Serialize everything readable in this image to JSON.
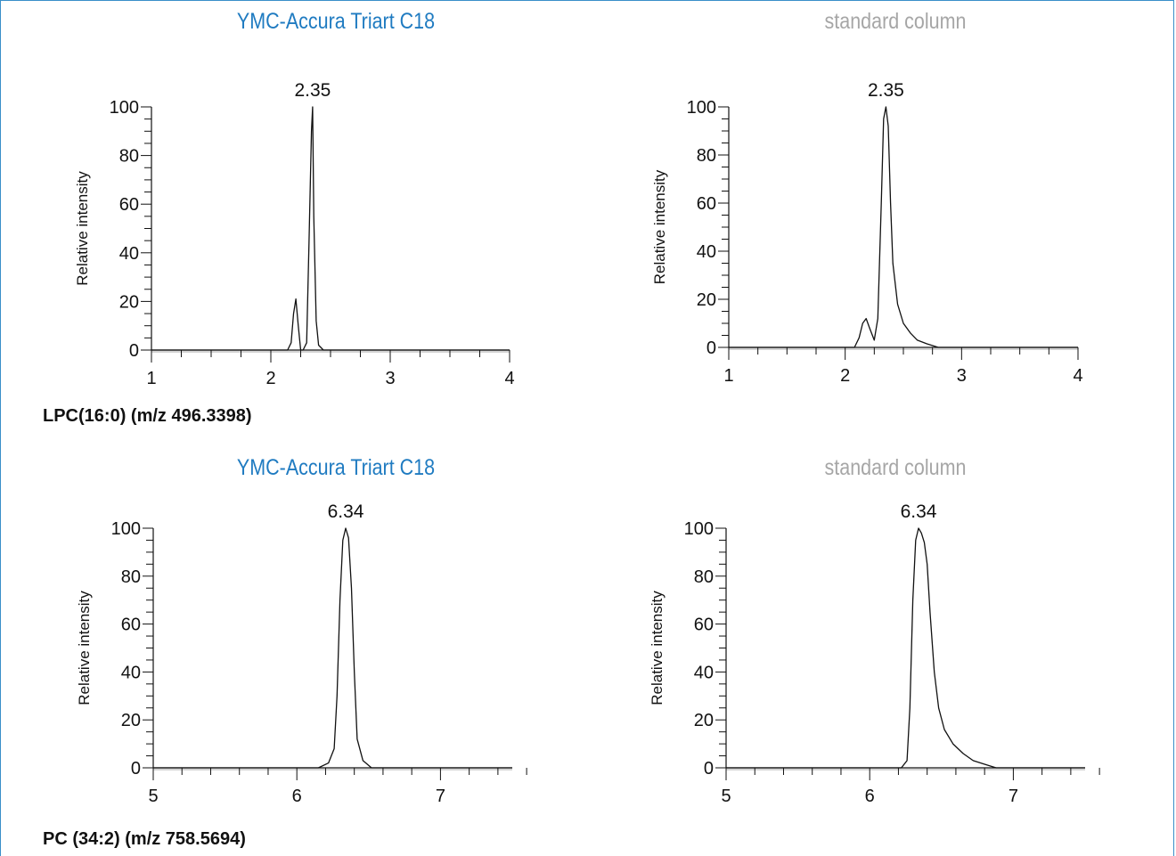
{
  "colors": {
    "accent": "#1f7bc1",
    "muted": "#a6a6a6",
    "frame": "#3a8fc9"
  },
  "sections": [
    {
      "compound": "LPC(16:0) (m/z 496.3398)"
    },
    {
      "compound": "PC (34:2) (m/z 758.5694)"
    }
  ],
  "chart_data": [
    {
      "type": "line",
      "title": "YMC-Accura Triart C18",
      "title_color": "accent",
      "ylabel": "Relative intensity",
      "xlabel": "",
      "xlim": [
        1,
        4
      ],
      "ylim": [
        0,
        100
      ],
      "xticks": [
        "1",
        "2",
        "3",
        "4"
      ],
      "yticks": [
        "0",
        "20",
        "40",
        "60",
        "80",
        "100"
      ],
      "peak_label": "2.35",
      "series": [
        {
          "x": [
            1.0,
            2.14,
            2.17,
            2.19,
            2.21,
            2.23,
            2.25,
            2.27,
            2.3,
            2.32,
            2.34,
            2.35,
            2.36,
            2.38,
            2.4,
            2.44,
            4.0
          ],
          "y": [
            0,
            0,
            3,
            15,
            21,
            10,
            0,
            0,
            3,
            45,
            90,
            100,
            55,
            12,
            2,
            0,
            0
          ]
        }
      ]
    },
    {
      "type": "line",
      "title": "standard column",
      "title_color": "muted",
      "ylabel": "Relative intensity",
      "xlabel": "",
      "xlim": [
        1,
        4
      ],
      "ylim": [
        0,
        100
      ],
      "xticks": [
        "1",
        "2",
        "3",
        "4"
      ],
      "yticks": [
        "0",
        "20",
        "40",
        "60",
        "80",
        "100"
      ],
      "peak_label": "2.35",
      "series": [
        {
          "x": [
            1.0,
            2.08,
            2.12,
            2.15,
            2.18,
            2.21,
            2.25,
            2.28,
            2.31,
            2.33,
            2.35,
            2.37,
            2.39,
            2.41,
            2.45,
            2.5,
            2.56,
            2.62,
            2.7,
            2.8,
            4.0
          ],
          "y": [
            0,
            0,
            4,
            10,
            12,
            8,
            3,
            12,
            60,
            95,
            100,
            92,
            60,
            35,
            18,
            10,
            6,
            3,
            1.5,
            0,
            0
          ]
        }
      ]
    },
    {
      "type": "line",
      "title": "YMC-Accura Triart C18",
      "title_color": "accent",
      "ylabel": "Relative intensity",
      "xlabel": "",
      "xlim": [
        5,
        7.5
      ],
      "ylim": [
        0,
        100
      ],
      "xticks": [
        "5",
        "6",
        "7"
      ],
      "yticks": [
        "0",
        "20",
        "40",
        "60",
        "80",
        "100"
      ],
      "peak_label": "6.34",
      "series": [
        {
          "x": [
            5.0,
            6.15,
            6.22,
            6.26,
            6.28,
            6.3,
            6.32,
            6.34,
            6.36,
            6.38,
            6.4,
            6.42,
            6.46,
            6.52,
            7.5
          ],
          "y": [
            0,
            0,
            2,
            8,
            30,
            70,
            95,
            100,
            96,
            75,
            40,
            12,
            3,
            0,
            0
          ]
        }
      ]
    },
    {
      "type": "line",
      "title": "standard column",
      "title_color": "muted",
      "ylabel": "Relative intensity",
      "xlabel": "",
      "xlim": [
        5,
        7.5
      ],
      "ylim": [
        0,
        100
      ],
      "xticks": [
        "5",
        "6",
        "7"
      ],
      "yticks": [
        "0",
        "20",
        "40",
        "60",
        "80",
        "100"
      ],
      "peak_label": "6.34",
      "series": [
        {
          "x": [
            5.0,
            6.22,
            6.26,
            6.28,
            6.3,
            6.32,
            6.34,
            6.36,
            6.38,
            6.4,
            6.42,
            6.45,
            6.48,
            6.52,
            6.58,
            6.65,
            6.72,
            6.8,
            6.88,
            7.5
          ],
          "y": [
            0,
            0,
            3,
            25,
            70,
            95,
            100,
            98,
            94,
            85,
            65,
            40,
            25,
            16,
            10,
            6,
            3,
            1.5,
            0,
            0
          ]
        }
      ]
    }
  ]
}
